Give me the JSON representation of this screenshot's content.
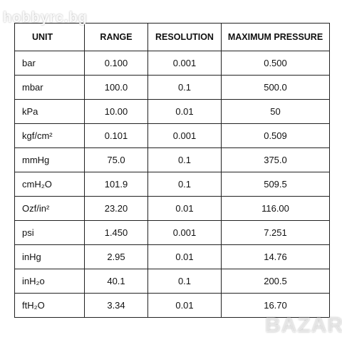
{
  "table": {
    "header": [
      "UNIT",
      "RANGE",
      "RESOLUTION",
      "MAXIMUM PRESSURE"
    ],
    "rows": [
      [
        "bar",
        "0.100",
        "0.001",
        "0.500"
      ],
      [
        "mbar",
        "100.0",
        "0.1",
        "500.0"
      ],
      [
        "kPa",
        "10.00",
        "0.01",
        "50"
      ],
      [
        "kgf/cm²",
        "0.101",
        "0.001",
        "0.509"
      ],
      [
        "mmHg",
        "75.0",
        "0.1",
        "375.0"
      ],
      [
        "cmH₂O",
        "101.9",
        "0.1",
        "509.5"
      ],
      [
        "Ozf/in²",
        "23.20",
        "0.01",
        "116.00"
      ],
      [
        "psi",
        "1.450",
        "0.001",
        "7.251"
      ],
      [
        "inHg",
        "2.95",
        "0.01",
        "14.76"
      ],
      [
        "inH₂o",
        "40.1",
        "0.1",
        "200.5"
      ],
      [
        "ftH₂O",
        "3.34",
        "0.01",
        "16.70"
      ]
    ]
  },
  "watermarks": [
    "hobbyrc.bg",
    "BAZAR"
  ]
}
